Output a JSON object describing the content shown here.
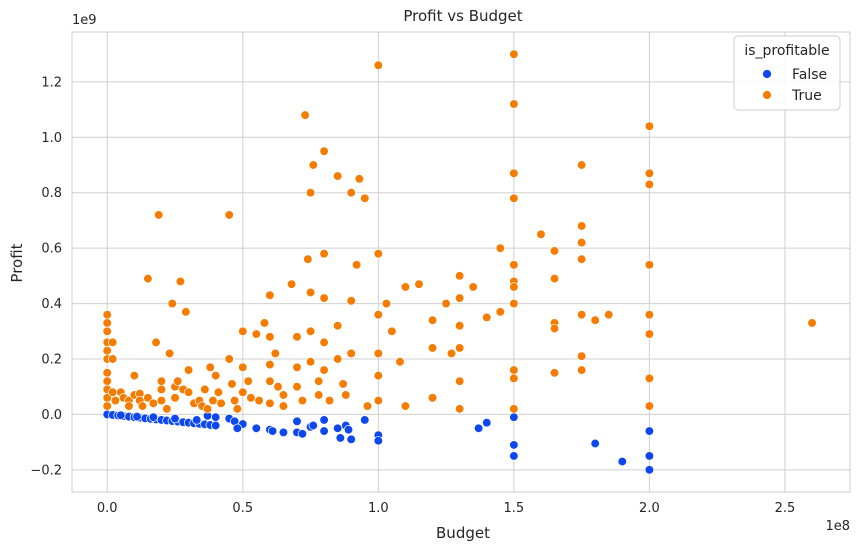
{
  "chart_data": {
    "type": "scatter",
    "title": "Profit vs Budget",
    "xlabel": "Budget",
    "ylabel": "Profit",
    "x_offset_label": "1e8",
    "y_offset_label": "1e9",
    "xlim": [
      -0.13,
      2.74
    ],
    "ylim": [
      -0.28,
      1.38
    ],
    "x_ticks": [
      0.0,
      0.5,
      1.0,
      1.5,
      2.0,
      2.5
    ],
    "x_tick_labels": [
      "0.0",
      "0.5",
      "1.0",
      "1.5",
      "2.0",
      "2.5"
    ],
    "y_ticks": [
      -0.2,
      0.0,
      0.2,
      0.4,
      0.6,
      0.8,
      1.0,
      1.2
    ],
    "y_tick_labels": [
      "−0.2",
      "0.0",
      "0.2",
      "0.4",
      "0.6",
      "0.8",
      "1.0",
      "1.2"
    ],
    "grid": true,
    "legend": {
      "title": "is_profitable",
      "position": "top-right"
    },
    "series": [
      {
        "name": "False",
        "color": "#0d47f0",
        "points": [
          [
            0.0,
            0.0
          ],
          [
            0.02,
            -0.002
          ],
          [
            0.04,
            -0.004
          ],
          [
            0.06,
            -0.006
          ],
          [
            0.08,
            -0.008
          ],
          [
            0.1,
            -0.01
          ],
          [
            0.12,
            -0.012
          ],
          [
            0.14,
            -0.014
          ],
          [
            0.16,
            -0.016
          ],
          [
            0.18,
            -0.018
          ],
          [
            0.2,
            -0.02
          ],
          [
            0.22,
            -0.022
          ],
          [
            0.24,
            -0.024
          ],
          [
            0.26,
            -0.026
          ],
          [
            0.28,
            -0.028
          ],
          [
            0.3,
            -0.03
          ],
          [
            0.32,
            -0.032
          ],
          [
            0.34,
            -0.034
          ],
          [
            0.36,
            -0.036
          ],
          [
            0.38,
            -0.038
          ],
          [
            0.05,
            -0.003
          ],
          [
            0.11,
            -0.008
          ],
          [
            0.17,
            -0.01
          ],
          [
            0.25,
            -0.015
          ],
          [
            0.33,
            -0.02
          ],
          [
            0.37,
            -0.005
          ],
          [
            0.4,
            -0.01
          ],
          [
            0.45,
            -0.015
          ],
          [
            0.47,
            -0.025
          ],
          [
            0.5,
            -0.035
          ],
          [
            0.4,
            -0.04
          ],
          [
            0.48,
            -0.05
          ],
          [
            0.55,
            -0.05
          ],
          [
            0.6,
            -0.055
          ],
          [
            0.61,
            -0.06
          ],
          [
            0.65,
            -0.065
          ],
          [
            0.7,
            -0.025
          ],
          [
            0.7,
            -0.065
          ],
          [
            0.72,
            -0.07
          ],
          [
            0.75,
            -0.045
          ],
          [
            0.76,
            -0.04
          ],
          [
            0.8,
            -0.02
          ],
          [
            0.8,
            -0.06
          ],
          [
            0.85,
            -0.05
          ],
          [
            0.86,
            -0.085
          ],
          [
            0.88,
            -0.04
          ],
          [
            0.89,
            -0.055
          ],
          [
            0.9,
            -0.09
          ],
          [
            0.95,
            -0.02
          ],
          [
            1.0,
            -0.075
          ],
          [
            1.0,
            -0.095
          ],
          [
            1.37,
            -0.05
          ],
          [
            1.4,
            -0.03
          ],
          [
            1.5,
            -0.01
          ],
          [
            1.5,
            -0.11
          ],
          [
            1.5,
            -0.15
          ],
          [
            1.8,
            -0.105
          ],
          [
            1.9,
            -0.17
          ],
          [
            2.0,
            -0.06
          ],
          [
            2.0,
            -0.15
          ],
          [
            2.0,
            -0.2
          ]
        ]
      },
      {
        "name": "True",
        "color": "#f57c00",
        "points": [
          [
            0.0,
            0.36
          ],
          [
            0.0,
            0.33
          ],
          [
            0.0,
            0.3
          ],
          [
            0.0,
            0.26
          ],
          [
            0.0,
            0.23
          ],
          [
            0.0,
            0.2
          ],
          [
            0.0,
            0.15
          ],
          [
            0.0,
            0.12
          ],
          [
            0.0,
            0.09
          ],
          [
            0.0,
            0.06
          ],
          [
            0.0,
            0.03
          ],
          [
            0.02,
            0.26
          ],
          [
            0.02,
            0.2
          ],
          [
            0.02,
            0.08
          ],
          [
            0.03,
            0.05
          ],
          [
            0.05,
            0.08
          ],
          [
            0.06,
            0.06
          ],
          [
            0.08,
            0.05
          ],
          [
            0.08,
            0.03
          ],
          [
            0.1,
            0.07
          ],
          [
            0.1,
            0.14
          ],
          [
            0.12,
            0.075
          ],
          [
            0.12,
            0.05
          ],
          [
            0.13,
            0.03
          ],
          [
            0.15,
            0.06
          ],
          [
            0.15,
            0.49
          ],
          [
            0.17,
            0.04
          ],
          [
            0.18,
            0.26
          ],
          [
            0.19,
            0.72
          ],
          [
            0.2,
            0.12
          ],
          [
            0.2,
            0.09
          ],
          [
            0.2,
            0.05
          ],
          [
            0.22,
            0.02
          ],
          [
            0.23,
            0.22
          ],
          [
            0.24,
            0.4
          ],
          [
            0.25,
            0.1
          ],
          [
            0.25,
            0.06
          ],
          [
            0.26,
            0.12
          ],
          [
            0.27,
            0.48
          ],
          [
            0.28,
            0.09
          ],
          [
            0.29,
            0.37
          ],
          [
            0.3,
            0.16
          ],
          [
            0.3,
            0.08
          ],
          [
            0.32,
            0.04
          ],
          [
            0.34,
            0.05
          ],
          [
            0.35,
            0.03
          ],
          [
            0.36,
            0.09
          ],
          [
            0.37,
            0.02
          ],
          [
            0.38,
            0.17
          ],
          [
            0.39,
            0.05
          ],
          [
            0.4,
            0.14
          ],
          [
            0.41,
            0.08
          ],
          [
            0.42,
            0.04
          ],
          [
            0.45,
            0.72
          ],
          [
            0.45,
            0.2
          ],
          [
            0.46,
            0.11
          ],
          [
            0.47,
            0.05
          ],
          [
            0.48,
            0.02
          ],
          [
            0.5,
            0.3
          ],
          [
            0.5,
            0.17
          ],
          [
            0.5,
            0.08
          ],
          [
            0.52,
            0.12
          ],
          [
            0.53,
            0.06
          ],
          [
            0.55,
            0.29
          ],
          [
            0.56,
            0.05
          ],
          [
            0.58,
            0.33
          ],
          [
            0.6,
            0.43
          ],
          [
            0.6,
            0.28
          ],
          [
            0.6,
            0.18
          ],
          [
            0.6,
            0.12
          ],
          [
            0.6,
            0.04
          ],
          [
            0.62,
            0.22
          ],
          [
            0.63,
            0.1
          ],
          [
            0.65,
            0.07
          ],
          [
            0.65,
            0.03
          ],
          [
            0.68,
            0.47
          ],
          [
            0.7,
            0.28
          ],
          [
            0.7,
            0.17
          ],
          [
            0.7,
            0.1
          ],
          [
            0.72,
            0.05
          ],
          [
            0.73,
            1.08
          ],
          [
            0.74,
            0.56
          ],
          [
            0.75,
            0.8
          ],
          [
            0.75,
            0.44
          ],
          [
            0.75,
            0.3
          ],
          [
            0.75,
            0.19
          ],
          [
            0.76,
            0.9
          ],
          [
            0.78,
            0.12
          ],
          [
            0.78,
            0.07
          ],
          [
            0.8,
            0.95
          ],
          [
            0.8,
            0.58
          ],
          [
            0.8,
            0.42
          ],
          [
            0.8,
            0.26
          ],
          [
            0.8,
            0.16
          ],
          [
            0.82,
            0.05
          ],
          [
            0.85,
            0.86
          ],
          [
            0.85,
            0.32
          ],
          [
            0.85,
            0.2
          ],
          [
            0.87,
            0.11
          ],
          [
            0.88,
            0.07
          ],
          [
            0.9,
            0.8
          ],
          [
            0.9,
            0.41
          ],
          [
            0.9,
            0.22
          ],
          [
            0.92,
            0.54
          ],
          [
            0.93,
            0.85
          ],
          [
            0.95,
            0.78
          ],
          [
            0.96,
            0.03
          ],
          [
            1.0,
            1.26
          ],
          [
            1.0,
            0.58
          ],
          [
            1.0,
            0.36
          ],
          [
            1.0,
            0.22
          ],
          [
            1.0,
            0.14
          ],
          [
            1.0,
            0.05
          ],
          [
            1.03,
            0.4
          ],
          [
            1.05,
            0.3
          ],
          [
            1.08,
            0.19
          ],
          [
            1.1,
            0.46
          ],
          [
            1.1,
            0.03
          ],
          [
            1.15,
            0.47
          ],
          [
            1.2,
            0.34
          ],
          [
            1.2,
            0.24
          ],
          [
            1.2,
            0.06
          ],
          [
            1.25,
            0.4
          ],
          [
            1.27,
            0.22
          ],
          [
            1.3,
            0.5
          ],
          [
            1.3,
            0.42
          ],
          [
            1.3,
            0.32
          ],
          [
            1.3,
            0.24
          ],
          [
            1.3,
            0.12
          ],
          [
            1.3,
            0.02
          ],
          [
            1.35,
            0.46
          ],
          [
            1.4,
            0.35
          ],
          [
            1.45,
            0.6
          ],
          [
            1.45,
            0.37
          ],
          [
            1.5,
            1.3
          ],
          [
            1.5,
            1.12
          ],
          [
            1.5,
            0.87
          ],
          [
            1.5,
            0.78
          ],
          [
            1.5,
            0.54
          ],
          [
            1.5,
            0.48
          ],
          [
            1.5,
            0.46
          ],
          [
            1.5,
            0.4
          ],
          [
            1.5,
            0.16
          ],
          [
            1.5,
            0.13
          ],
          [
            1.5,
            0.02
          ],
          [
            1.6,
            0.65
          ],
          [
            1.65,
            0.59
          ],
          [
            1.65,
            0.49
          ],
          [
            1.65,
            0.33
          ],
          [
            1.65,
            0.31
          ],
          [
            1.65,
            0.15
          ],
          [
            1.75,
            0.9
          ],
          [
            1.75,
            0.68
          ],
          [
            1.75,
            0.62
          ],
          [
            1.75,
            0.56
          ],
          [
            1.75,
            0.36
          ],
          [
            1.75,
            0.21
          ],
          [
            1.75,
            0.16
          ],
          [
            1.8,
            0.34
          ],
          [
            1.85,
            0.36
          ],
          [
            2.0,
            1.04
          ],
          [
            2.0,
            0.87
          ],
          [
            2.0,
            0.83
          ],
          [
            2.0,
            0.54
          ],
          [
            2.0,
            0.36
          ],
          [
            2.0,
            0.29
          ],
          [
            2.0,
            0.13
          ],
          [
            2.0,
            0.03
          ],
          [
            2.6,
            0.33
          ]
        ]
      }
    ]
  }
}
